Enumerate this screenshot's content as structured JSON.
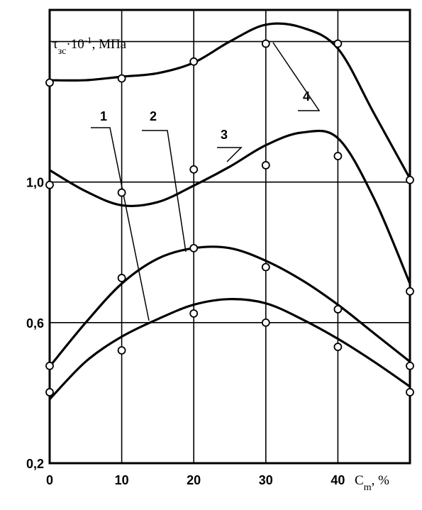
{
  "chart_data": {
    "type": "line",
    "x_label": {
      "base": "C",
      "sub": "m",
      "end": ", %"
    },
    "y_label": {
      "base": "τ",
      "sub": "зс",
      "mid": "·10",
      "sup": "-1",
      "end": ", МПа"
    },
    "x": [
      0,
      10,
      20,
      30,
      40,
      50
    ],
    "x_curve": [
      0,
      5,
      10,
      15,
      20,
      25,
      30,
      35,
      40,
      45,
      50
    ],
    "xlim": [
      0,
      50
    ],
    "xticks": [
      0,
      10,
      20,
      30,
      40
    ],
    "ylim": [
      0.2,
      1.49
    ],
    "yticks": [
      {
        "value": 0.2,
        "label": "0,2"
      },
      {
        "value": 0.6,
        "label": "0,6"
      },
      {
        "value": 1.0,
        "label": "1,0"
      },
      {
        "value": 1.4,
        "label": null
      }
    ],
    "grid": true,
    "color": "#000000",
    "series": [
      {
        "name": "1",
        "values": [
          0.402,
          0.521,
          0.626,
          0.6,
          0.531,
          0.402
        ],
        "fit": [
          0.382,
          0.489,
          0.56,
          0.61,
          0.651,
          0.667,
          0.655,
          0.61,
          0.554,
          0.489,
          0.418
        ]
      },
      {
        "name": "2",
        "values": [
          0.477,
          0.727,
          0.812,
          0.758,
          0.638,
          0.477
        ],
        "fit": [
          0.475,
          0.6,
          0.711,
          0.782,
          0.812,
          0.812,
          0.776,
          0.721,
          0.651,
          0.57,
          0.489
        ]
      },
      {
        "name": "3",
        "values": [
          0.992,
          0.97,
          1.036,
          1.048,
          1.074,
          0.689
        ],
        "fit": [
          1.034,
          0.974,
          0.934,
          0.943,
          0.99,
          1.044,
          1.105,
          1.141,
          1.125,
          0.954,
          0.711
        ]
      },
      {
        "name": "4",
        "values": [
          1.283,
          1.295,
          1.343,
          1.394,
          1.394,
          1.006
        ],
        "fit": [
          1.29,
          1.29,
          1.3,
          1.31,
          1.34,
          1.4,
          1.448,
          1.44,
          1.38,
          1.196,
          1.01
        ]
      }
    ]
  }
}
